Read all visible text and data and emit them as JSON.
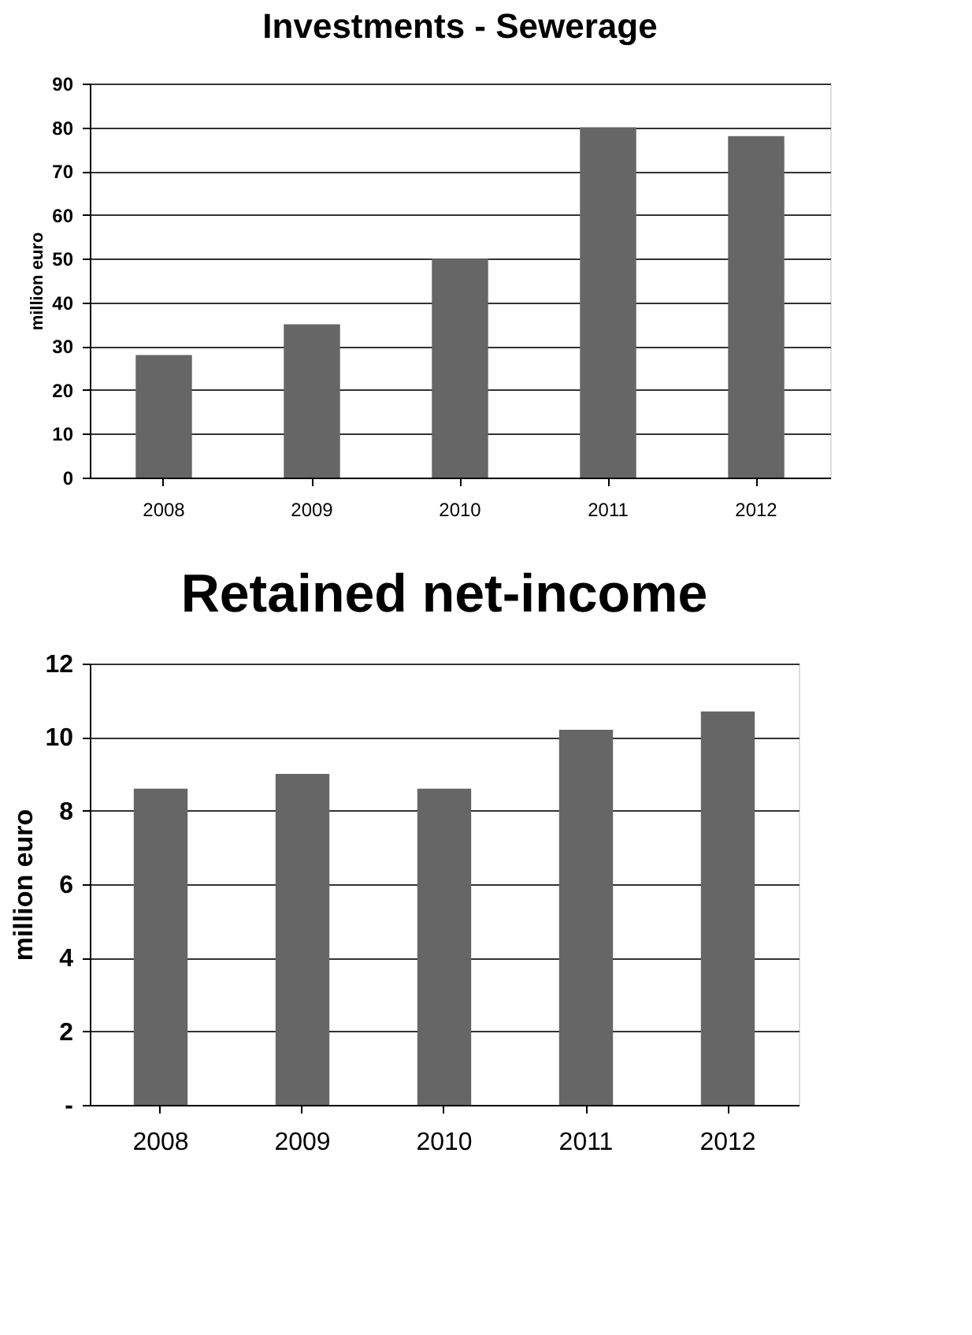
{
  "chart_data": [
    {
      "type": "bar",
      "title": "Investments - Sewerage",
      "ylabel": "million euro",
      "categories": [
        "2008",
        "2009",
        "2010",
        "2011",
        "2012"
      ],
      "values": [
        28,
        35,
        50,
        80,
        78
      ],
      "color": "#666666",
      "ylim": [
        0,
        90
      ],
      "yticks": [
        0,
        10,
        20,
        30,
        40,
        50,
        60,
        70,
        80,
        90
      ],
      "grid": "y"
    },
    {
      "type": "bar",
      "title": "Retained net-income",
      "ylabel": "million euro",
      "categories": [
        "2008",
        "2009",
        "2010",
        "2011",
        "2012"
      ],
      "values": [
        8.6,
        9.0,
        8.6,
        10.2,
        10.7
      ],
      "color": "#666666",
      "ylim": [
        0,
        12
      ],
      "yticks": [
        {
          "value": 0,
          "label": "-"
        },
        2,
        4,
        6,
        8,
        10,
        12
      ],
      "grid": "y"
    }
  ]
}
